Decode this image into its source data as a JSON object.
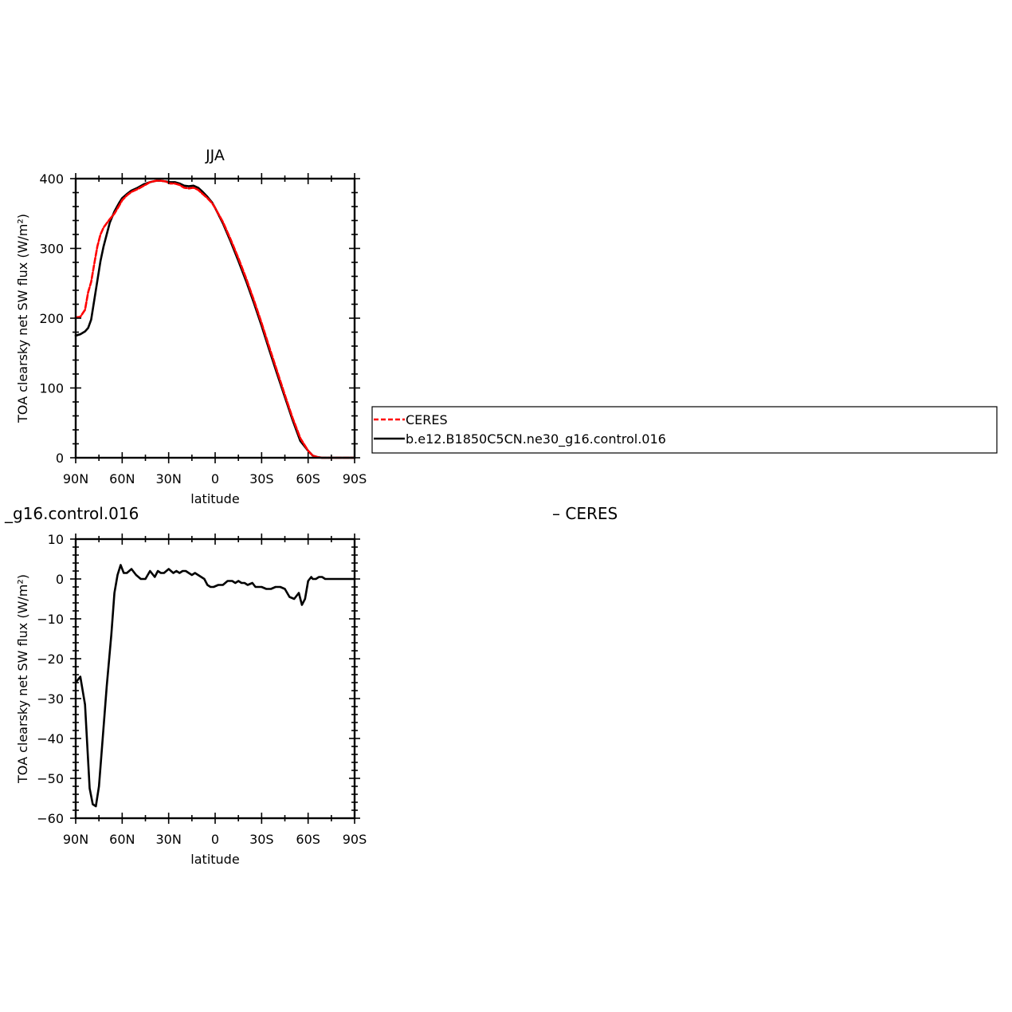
{
  "colors": {
    "ceres": "#ff0000",
    "model": "#000000",
    "axis": "#000000",
    "background": "#ffffff"
  },
  "legend": {
    "entries": [
      {
        "label": "CERES",
        "style": "dashed",
        "color": "#ff0000"
      },
      {
        "label": "b.e12.B1850C5CN.ne30_g16.control.016",
        "style": "solid",
        "color": "#000000"
      }
    ]
  },
  "bottom_header": {
    "left_title_fragment": "_g16.control.016",
    "right_title_fragment": "–  CERES"
  },
  "chart_data": [
    {
      "type": "line",
      "title": "JJA",
      "xlabel": "latitude",
      "ylabel": "TOA clearsky net SW flux (W/m²)",
      "xlim": [
        90,
        -90
      ],
      "ylim": [
        0,
        400
      ],
      "x_ticks": [
        90,
        60,
        30,
        0,
        -30,
        -60,
        -90
      ],
      "x_tick_labels": [
        "90N",
        "60N",
        "30N",
        "0",
        "30S",
        "60S",
        "90S"
      ],
      "y_ticks": [
        0,
        100,
        200,
        300,
        400
      ],
      "y_tick_labels": [
        "0",
        "100",
        "200",
        "300",
        "400"
      ],
      "grid": false,
      "series": [
        {
          "name": "CERES",
          "color": "#ff0000",
          "dash": "dashed",
          "x": [
            90,
            87,
            84,
            82,
            80,
            78,
            76,
            74,
            72,
            70,
            68,
            65,
            62,
            60,
            57,
            54,
            50,
            46,
            42,
            38,
            35,
            32,
            29,
            26,
            23,
            20,
            17,
            14,
            11,
            8,
            5,
            2,
            0,
            -5,
            -10,
            -15,
            -20,
            -25,
            -30,
            -35,
            -40,
            -45,
            -50,
            -55,
            -60,
            -63,
            -66,
            -69,
            -72,
            -75,
            -80,
            -85,
            -90
          ],
          "y": [
            201,
            202,
            212,
            237,
            252,
            278,
            303,
            320,
            330,
            336,
            342,
            350,
            361,
            369,
            376,
            381,
            385,
            390,
            395,
            397,
            397,
            396,
            393,
            393,
            391,
            387,
            386,
            387,
            384,
            378,
            372,
            365,
            358,
            338,
            313,
            286,
            257,
            226,
            193,
            158,
            124,
            90,
            57,
            28,
            10,
            3,
            1,
            0,
            0,
            0,
            0,
            0,
            0
          ]
        },
        {
          "name": "b.e12.B1850C5CN.ne30_g16.control.016",
          "color": "#000000",
          "dash": "solid",
          "x": [
            90,
            87,
            84,
            82,
            80,
            78,
            76,
            74,
            72,
            70,
            68,
            65,
            62,
            60,
            57,
            54,
            50,
            46,
            42,
            38,
            35,
            32,
            29,
            26,
            23,
            20,
            17,
            14,
            11,
            8,
            5,
            2,
            0,
            -5,
            -10,
            -15,
            -20,
            -25,
            -30,
            -35,
            -40,
            -45,
            -50,
            -55,
            -60,
            -63,
            -66,
            -69,
            -72,
            -75,
            -80,
            -85,
            -90
          ],
          "y": [
            175,
            177,
            181,
            186,
            198,
            226,
            254,
            282,
            303,
            320,
            337,
            353,
            365,
            372,
            378,
            383,
            387,
            392,
            395,
            397,
            397,
            396,
            395,
            395,
            393,
            390,
            389,
            390,
            387,
            381,
            374,
            366,
            358,
            336,
            310,
            282,
            253,
            222,
            189,
            154,
            120,
            87,
            54,
            24,
            10,
            3,
            1,
            0,
            0,
            0,
            0,
            0,
            0
          ]
        }
      ]
    },
    {
      "type": "line",
      "title": "",
      "xlabel": "latitude",
      "ylabel": "TOA clearsky net SW flux (W/m²)",
      "xlim": [
        90,
        -90
      ],
      "ylim": [
        -60,
        10
      ],
      "x_ticks": [
        90,
        60,
        30,
        0,
        -30,
        -60,
        -90
      ],
      "x_tick_labels": [
        "90N",
        "60N",
        "30N",
        "0",
        "30S",
        "60S",
        "90S"
      ],
      "y_ticks": [
        -60,
        -50,
        -40,
        -30,
        -20,
        -10,
        0,
        10
      ],
      "y_tick_labels": [
        "−60",
        "−50",
        "−40",
        "−30",
        "−20",
        "−10",
        "0",
        "10"
      ],
      "grid": false,
      "series": [
        {
          "color": "#000000",
          "dash": "solid",
          "x": [
            90,
            87,
            84,
            81,
            79,
            77,
            75,
            73,
            70,
            67,
            65,
            63,
            61,
            59,
            57,
            54,
            51,
            48,
            45,
            42,
            39,
            37,
            35,
            33,
            30,
            27,
            25,
            23,
            21,
            19,
            17,
            15,
            13,
            11,
            9,
            7,
            5,
            3,
            1,
            -2,
            -5,
            -8,
            -11,
            -13,
            -15,
            -17,
            -19,
            -21,
            -24,
            -26,
            -28,
            -30,
            -33,
            -36,
            -39,
            -42,
            -45,
            -48,
            -51,
            -54,
            -56,
            -58,
            -60,
            -62,
            -63,
            -65,
            -67,
            -69,
            -71,
            -73,
            -76,
            -80,
            -85,
            -90
          ],
          "y": [
            -26,
            -24.5,
            -31.5,
            -52.5,
            -56.5,
            -57,
            -52,
            -42,
            -27,
            -14,
            -3.5,
            1,
            3.5,
            1.5,
            1.5,
            2.5,
            1,
            0,
            0,
            2,
            0.5,
            2,
            1.5,
            1.5,
            2.5,
            1.5,
            2,
            1.5,
            2,
            2,
            1.5,
            1,
            1.5,
            1,
            0.5,
            0,
            -1.5,
            -2,
            -2,
            -1.5,
            -1.5,
            -0.5,
            -0.5,
            -1,
            -0.5,
            -1,
            -1,
            -1.5,
            -1,
            -2,
            -2,
            -2,
            -2.5,
            -2.5,
            -2,
            -2,
            -2.5,
            -4.5,
            -5,
            -3.5,
            -6.5,
            -5,
            -0.5,
            0.5,
            0,
            0,
            0.5,
            0.5,
            0,
            0,
            0,
            0,
            0,
            0
          ]
        }
      ]
    }
  ]
}
